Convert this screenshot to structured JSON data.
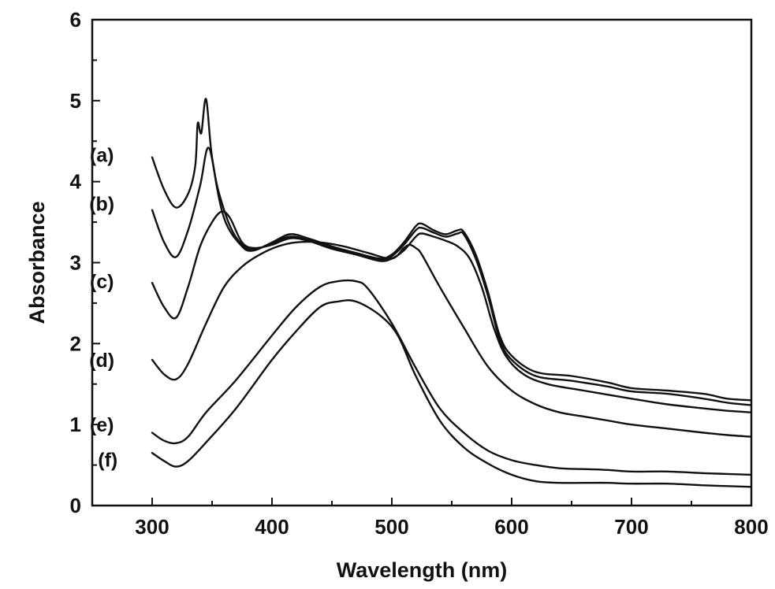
{
  "chart_data": {
    "type": "line",
    "title": "",
    "xlabel": "Wavelength (nm)",
    "ylabel": "Absorbance",
    "xlim": [
      250,
      800
    ],
    "ylim": [
      0,
      6
    ],
    "xticks": [
      300,
      400,
      500,
      600,
      700,
      800
    ],
    "yticks": [
      0,
      1,
      2,
      3,
      4,
      5,
      6
    ],
    "grid": false,
    "legend": "none",
    "line_color": "#111111",
    "series": [
      {
        "name": "(a)",
        "x": [
          300,
          310,
          320,
          330,
          336,
          338,
          341,
          345,
          350,
          360,
          375,
          385,
          400,
          415,
          430,
          450,
          470,
          490,
          500,
          510,
          520,
          525,
          535,
          545,
          555,
          560,
          570,
          580,
          590,
          600,
          620,
          650,
          680,
          700,
          730,
          760,
          780,
          800
        ],
        "y": [
          4.3,
          3.9,
          3.68,
          3.85,
          4.2,
          4.72,
          4.6,
          5.02,
          4.3,
          3.55,
          3.2,
          3.15,
          3.25,
          3.35,
          3.3,
          3.2,
          3.12,
          3.05,
          3.1,
          3.25,
          3.45,
          3.48,
          3.4,
          3.35,
          3.4,
          3.38,
          3.1,
          2.65,
          2.1,
          1.85,
          1.65,
          1.6,
          1.52,
          1.45,
          1.42,
          1.38,
          1.32,
          1.3
        ]
      },
      {
        "name": "(b)",
        "x": [
          300,
          310,
          320,
          330,
          340,
          347,
          355,
          365,
          375,
          385,
          400,
          415,
          430,
          450,
          470,
          490,
          500,
          510,
          520,
          525,
          535,
          545,
          555,
          560,
          570,
          580,
          590,
          600,
          620,
          650,
          680,
          700,
          730,
          760,
          780,
          800
        ],
        "y": [
          3.65,
          3.25,
          3.07,
          3.4,
          3.95,
          4.42,
          3.9,
          3.45,
          3.22,
          3.16,
          3.24,
          3.32,
          3.28,
          3.18,
          3.1,
          3.03,
          3.08,
          3.22,
          3.4,
          3.43,
          3.37,
          3.32,
          3.36,
          3.35,
          3.05,
          2.6,
          2.05,
          1.8,
          1.6,
          1.54,
          1.47,
          1.41,
          1.38,
          1.32,
          1.27,
          1.24
        ]
      },
      {
        "name": "(c)",
        "x": [
          300,
          310,
          320,
          330,
          340,
          350,
          358,
          365,
          375,
          385,
          400,
          415,
          430,
          450,
          470,
          490,
          500,
          510,
          520,
          525,
          535,
          545,
          555,
          565,
          575,
          585,
          595,
          610,
          630,
          660,
          700,
          730,
          760,
          780,
          800
        ],
        "y": [
          2.75,
          2.45,
          2.32,
          2.7,
          3.2,
          3.5,
          3.63,
          3.55,
          3.25,
          3.18,
          3.22,
          3.3,
          3.27,
          3.17,
          3.1,
          3.02,
          3.05,
          3.15,
          3.32,
          3.36,
          3.32,
          3.27,
          3.2,
          3.05,
          2.7,
          2.2,
          1.85,
          1.62,
          1.5,
          1.42,
          1.32,
          1.25,
          1.2,
          1.17,
          1.15
        ]
      },
      {
        "name": "(d)",
        "x": [
          300,
          310,
          320,
          330,
          345,
          360,
          375,
          390,
          405,
          420,
          440,
          460,
          480,
          500,
          510,
          515,
          520,
          525,
          540,
          560,
          580,
          600,
          620,
          640,
          660,
          680,
          700,
          730,
          760,
          780,
          800
        ],
        "y": [
          1.8,
          1.62,
          1.56,
          1.75,
          2.25,
          2.7,
          2.95,
          3.1,
          3.2,
          3.25,
          3.25,
          3.2,
          3.12,
          3.05,
          3.18,
          3.22,
          3.18,
          3.1,
          2.7,
          2.2,
          1.72,
          1.42,
          1.25,
          1.15,
          1.1,
          1.05,
          1.0,
          0.95,
          0.9,
          0.87,
          0.85
        ]
      },
      {
        "name": "(e)",
        "x": [
          300,
          310,
          320,
          330,
          345,
          370,
          400,
          420,
          440,
          455,
          470,
          480,
          500,
          520,
          540,
          560,
          580,
          600,
          620,
          640,
          660,
          680,
          700,
          730,
          760,
          780,
          800
        ],
        "y": [
          0.9,
          0.8,
          0.77,
          0.85,
          1.15,
          1.55,
          2.1,
          2.45,
          2.7,
          2.77,
          2.77,
          2.68,
          2.25,
          1.7,
          1.2,
          0.9,
          0.68,
          0.56,
          0.5,
          0.46,
          0.45,
          0.44,
          0.42,
          0.42,
          0.4,
          0.39,
          0.38
        ]
      },
      {
        "name": "(f)",
        "x": [
          300,
          310,
          320,
          330,
          345,
          370,
          400,
          420,
          440,
          455,
          470,
          490,
          505,
          520,
          540,
          560,
          580,
          600,
          620,
          640,
          660,
          680,
          700,
          730,
          760,
          780,
          800
        ],
        "y": [
          0.65,
          0.55,
          0.48,
          0.55,
          0.78,
          1.2,
          1.8,
          2.15,
          2.45,
          2.52,
          2.52,
          2.35,
          2.1,
          1.6,
          1.05,
          0.72,
          0.52,
          0.38,
          0.3,
          0.28,
          0.28,
          0.28,
          0.27,
          0.27,
          0.25,
          0.24,
          0.23
        ]
      }
    ],
    "curve_labels": [
      {
        "text": "(a)",
        "at_x": 258,
        "at_y": 4.33
      },
      {
        "text": "(b)",
        "at_x": 258,
        "at_y": 3.73
      },
      {
        "text": "(c)",
        "at_x": 258,
        "at_y": 2.77
      },
      {
        "text": "(d)",
        "at_x": 258,
        "at_y": 1.8
      },
      {
        "text": "(e)",
        "at_x": 258,
        "at_y": 1.0
      },
      {
        "text": "(f)",
        "at_x": 263,
        "at_y": 0.57
      }
    ]
  }
}
